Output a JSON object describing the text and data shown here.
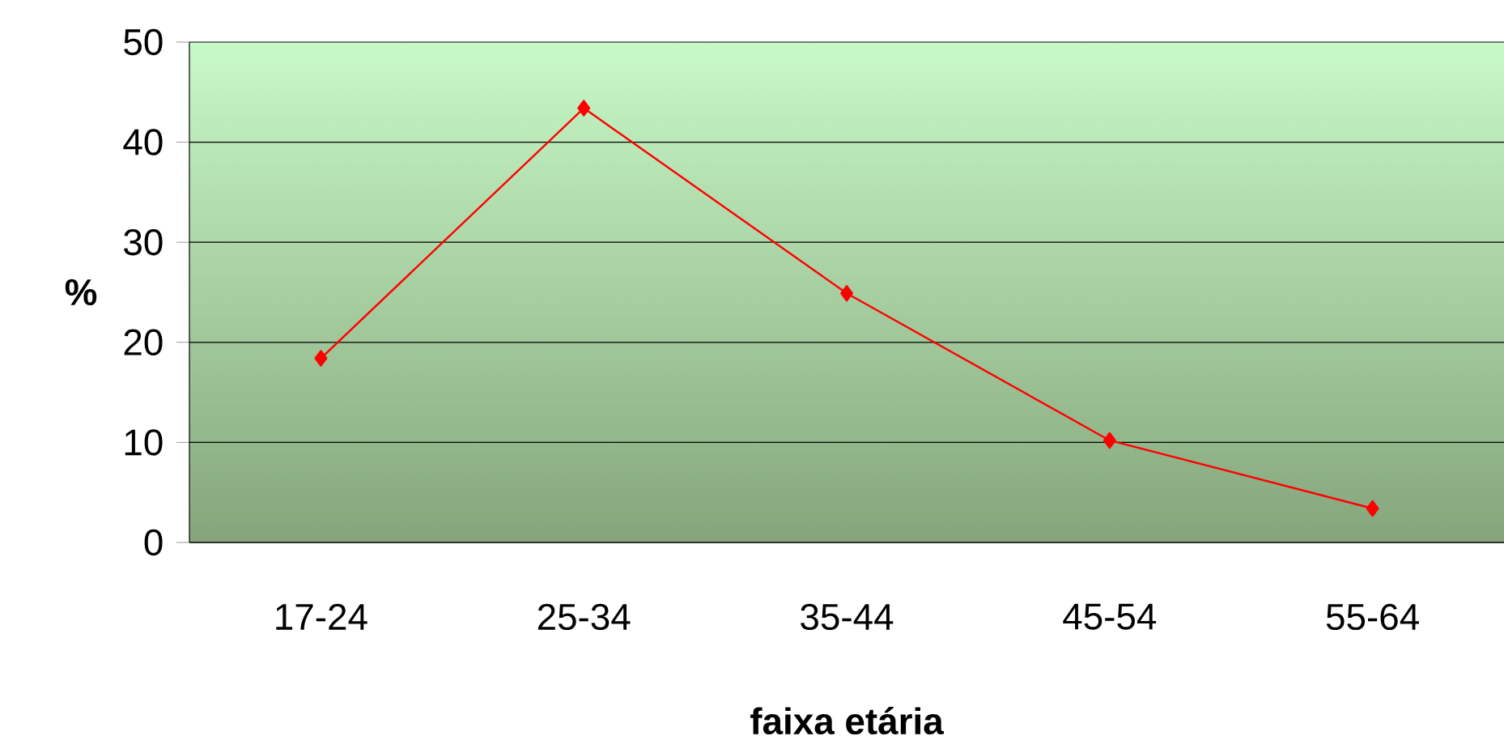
{
  "chart_data": {
    "type": "line",
    "xlabel": "faixa etária",
    "ylabel": "%",
    "categories": [
      "17-24",
      "25-34",
      "35-44",
      "45-54",
      "55-64"
    ],
    "series": [
      {
        "color": "#ff0000",
        "values": [
          18.4,
          43.4,
          24.9,
          10.2,
          3.4
        ]
      }
    ],
    "ylim": [
      0,
      50
    ],
    "yticks": [
      0,
      10,
      20,
      30,
      40,
      50
    ],
    "grid": "y",
    "marker": "diamond",
    "line_style": "solid"
  }
}
